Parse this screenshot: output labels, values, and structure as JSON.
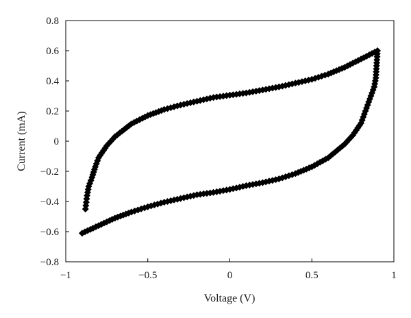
{
  "chart_data": {
    "type": "scatter",
    "title": "",
    "xlabel": "Voltage (V)",
    "ylabel": "Current (mA)",
    "xlim": [
      -1,
      1
    ],
    "ylim": [
      -0.8,
      0.8
    ],
    "x_ticks": [
      "−1",
      "−0.5",
      "0",
      "0.5",
      "1"
    ],
    "y_ticks": [
      "0.8",
      "0.6",
      "0.4",
      "0.2",
      "0",
      "−0.2",
      "−0.4",
      "−0.6",
      "−0.8"
    ],
    "grid": false,
    "legend": "none",
    "marker": "diamond",
    "marker_color": "#000000",
    "series": [
      {
        "values": [
          {
            "x": -0.9,
            "y": -0.61
          },
          {
            "x": -0.8,
            "y": -0.56
          },
          {
            "x": -0.7,
            "y": -0.51
          },
          {
            "x": -0.6,
            "y": -0.47
          },
          {
            "x": -0.5,
            "y": -0.435
          },
          {
            "x": -0.4,
            "y": -0.405
          },
          {
            "x": -0.3,
            "y": -0.38
          },
          {
            "x": -0.2,
            "y": -0.355
          },
          {
            "x": -0.1,
            "y": -0.34
          },
          {
            "x": 0.0,
            "y": -0.32
          },
          {
            "x": 0.1,
            "y": -0.295
          },
          {
            "x": 0.2,
            "y": -0.275
          },
          {
            "x": 0.3,
            "y": -0.25
          },
          {
            "x": 0.4,
            "y": -0.215
          },
          {
            "x": 0.5,
            "y": -0.17
          },
          {
            "x": 0.6,
            "y": -0.11
          },
          {
            "x": 0.7,
            "y": -0.02
          },
          {
            "x": 0.75,
            "y": 0.04
          },
          {
            "x": 0.8,
            "y": 0.12
          },
          {
            "x": 0.82,
            "y": 0.18
          },
          {
            "x": 0.84,
            "y": 0.24
          },
          {
            "x": 0.86,
            "y": 0.3
          },
          {
            "x": 0.88,
            "y": 0.36
          },
          {
            "x": 0.89,
            "y": 0.42
          },
          {
            "x": 0.9,
            "y": 0.6
          },
          {
            "x": 0.8,
            "y": 0.545
          },
          {
            "x": 0.7,
            "y": 0.49
          },
          {
            "x": 0.6,
            "y": 0.445
          },
          {
            "x": 0.5,
            "y": 0.41
          },
          {
            "x": 0.4,
            "y": 0.385
          },
          {
            "x": 0.3,
            "y": 0.36
          },
          {
            "x": 0.2,
            "y": 0.34
          },
          {
            "x": 0.1,
            "y": 0.32
          },
          {
            "x": 0.0,
            "y": 0.305
          },
          {
            "x": -0.1,
            "y": 0.29
          },
          {
            "x": -0.2,
            "y": 0.265
          },
          {
            "x": -0.3,
            "y": 0.24
          },
          {
            "x": -0.4,
            "y": 0.21
          },
          {
            "x": -0.5,
            "y": 0.17
          },
          {
            "x": -0.6,
            "y": 0.115
          },
          {
            "x": -0.7,
            "y": 0.03
          },
          {
            "x": -0.75,
            "y": -0.03
          },
          {
            "x": -0.8,
            "y": -0.11
          },
          {
            "x": -0.82,
            "y": -0.17
          },
          {
            "x": -0.84,
            "y": -0.24
          },
          {
            "x": -0.86,
            "y": -0.3
          },
          {
            "x": -0.87,
            "y": -0.36
          },
          {
            "x": -0.88,
            "y": -0.45
          }
        ]
      }
    ]
  }
}
